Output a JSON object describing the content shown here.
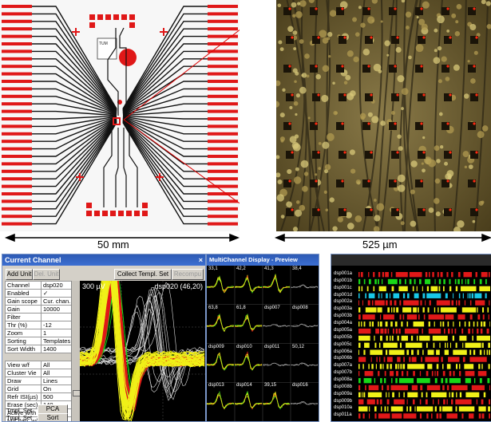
{
  "scale_bars": {
    "left": "50 mm",
    "right": "525 µm"
  },
  "current_channel": {
    "title": "Current Channel",
    "add_unit": "Add Unit",
    "del_unit": "Del. Unit",
    "collect": "Collect Templ. Set",
    "recompute": "Recompu",
    "scope_voltage": "300 µV",
    "scope_channel": "dsp020 (46,20)",
    "params": [
      {
        "k": "Channel",
        "v": "dsp020"
      },
      {
        "k": "Enabled",
        "v": "✓"
      },
      {
        "k": "Gain scope",
        "v": "Cur. chan."
      },
      {
        "k": "Gain",
        "v": "10000"
      },
      {
        "k": "Filter",
        "v": ""
      },
      {
        "k": "Thr (%)",
        "v": "-12"
      },
      {
        "k": "Zoom",
        "v": "1"
      },
      {
        "k": "Sorting",
        "v": "Templates"
      },
      {
        "k": "Sort Width",
        "v": "1400"
      },
      {
        "k": "",
        "v": ""
      },
      {
        "k": "View w/f",
        "v": "All"
      },
      {
        "k": "Cluster Vie",
        "v": "All"
      },
      {
        "k": "Draw",
        "v": "Lines"
      },
      {
        "k": "Grid",
        "v": "On"
      },
      {
        "k": "Refr ISI(µs)",
        "v": "500"
      },
      {
        "k": "Erase (sec)",
        "v": "140"
      },
      {
        "k": "Active w/th",
        "v": "500"
      },
      {
        "k": "M/Chan. w/f",
        "v": "100"
      }
    ],
    "tmpl_set_label": "Tmpl. Set",
    "pca": "PCA",
    "sort": "Sort"
  },
  "multichannel": {
    "title": "MultiChannel Display - Preview",
    "cells": [
      "33,1",
      "42,2",
      "41,3",
      "38,4",
      "63,8",
      "61,8",
      "dsp007",
      "dsp008",
      "dsp009",
      "dsp010",
      "dsp011",
      "50,12",
      "dsp013",
      "dsp014",
      "39,15",
      "dsp016"
    ]
  },
  "raster": {
    "channels": [
      "dsp001a",
      "dsp001b",
      "dsp001c",
      "dsp001d",
      "dsp002a",
      "dsp003a",
      "dsp003b",
      "dsp004a",
      "dsp005a",
      "dsp005b",
      "dsp005c",
      "dsp006a",
      "dsp006b",
      "dsp007a",
      "dsp007b",
      "dsp008a",
      "dsp008b",
      "dsp009a",
      "dsp009b",
      "dsp010a",
      "dsp011a"
    ]
  },
  "colors": {
    "red": "#e01818",
    "yellow": "#f0f018",
    "green": "#18d818",
    "cyan": "#18c8e8",
    "titlebar": "#2d5ab4"
  }
}
